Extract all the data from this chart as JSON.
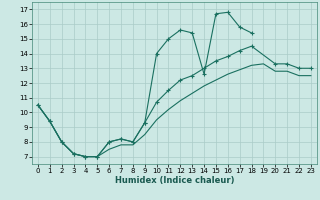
{
  "xlabel": "Humidex (Indice chaleur)",
  "bg_color": "#cce8e4",
  "grid_color": "#aaccc8",
  "line_color": "#1a7060",
  "xlim": [
    -0.5,
    23.5
  ],
  "ylim": [
    6.5,
    17.5
  ],
  "xticks": [
    0,
    1,
    2,
    3,
    4,
    5,
    6,
    7,
    8,
    9,
    10,
    11,
    12,
    13,
    14,
    15,
    16,
    17,
    18,
    19,
    20,
    21,
    22,
    23
  ],
  "yticks": [
    7,
    8,
    9,
    10,
    11,
    12,
    13,
    14,
    15,
    16,
    17
  ],
  "curve1_x": [
    0,
    1,
    2,
    3,
    4,
    5,
    6,
    7,
    8,
    9,
    10,
    11,
    12,
    13,
    14,
    15,
    16,
    17,
    18
  ],
  "curve1_y": [
    10.5,
    9.4,
    8.0,
    7.2,
    7.0,
    7.0,
    8.0,
    8.2,
    8.0,
    9.3,
    14.0,
    15.0,
    15.6,
    15.4,
    12.6,
    16.7,
    16.8,
    15.8,
    15.4
  ],
  "curve2_x": [
    0,
    1,
    2,
    3,
    4,
    5,
    6,
    7,
    8,
    9,
    10,
    11,
    12,
    13,
    14,
    15,
    16,
    17,
    18,
    20,
    21,
    22,
    23
  ],
  "curve2_y": [
    10.5,
    9.4,
    8.0,
    7.2,
    7.0,
    7.0,
    8.0,
    8.2,
    8.0,
    9.3,
    10.7,
    11.5,
    12.2,
    12.5,
    13.0,
    13.5,
    13.8,
    14.2,
    14.5,
    13.3,
    13.3,
    13.0,
    13.0
  ],
  "curve3_x": [
    0,
    1,
    2,
    3,
    4,
    5,
    6,
    7,
    8,
    9,
    10,
    11,
    12,
    13,
    14,
    15,
    16,
    17,
    18,
    19,
    20,
    21,
    22,
    23
  ],
  "curve3_y": [
    10.5,
    9.4,
    8.0,
    7.2,
    7.0,
    7.0,
    7.5,
    7.8,
    7.8,
    8.5,
    9.5,
    10.2,
    10.8,
    11.3,
    11.8,
    12.2,
    12.6,
    12.9,
    13.2,
    13.3,
    12.8,
    12.8,
    12.5,
    12.5
  ]
}
